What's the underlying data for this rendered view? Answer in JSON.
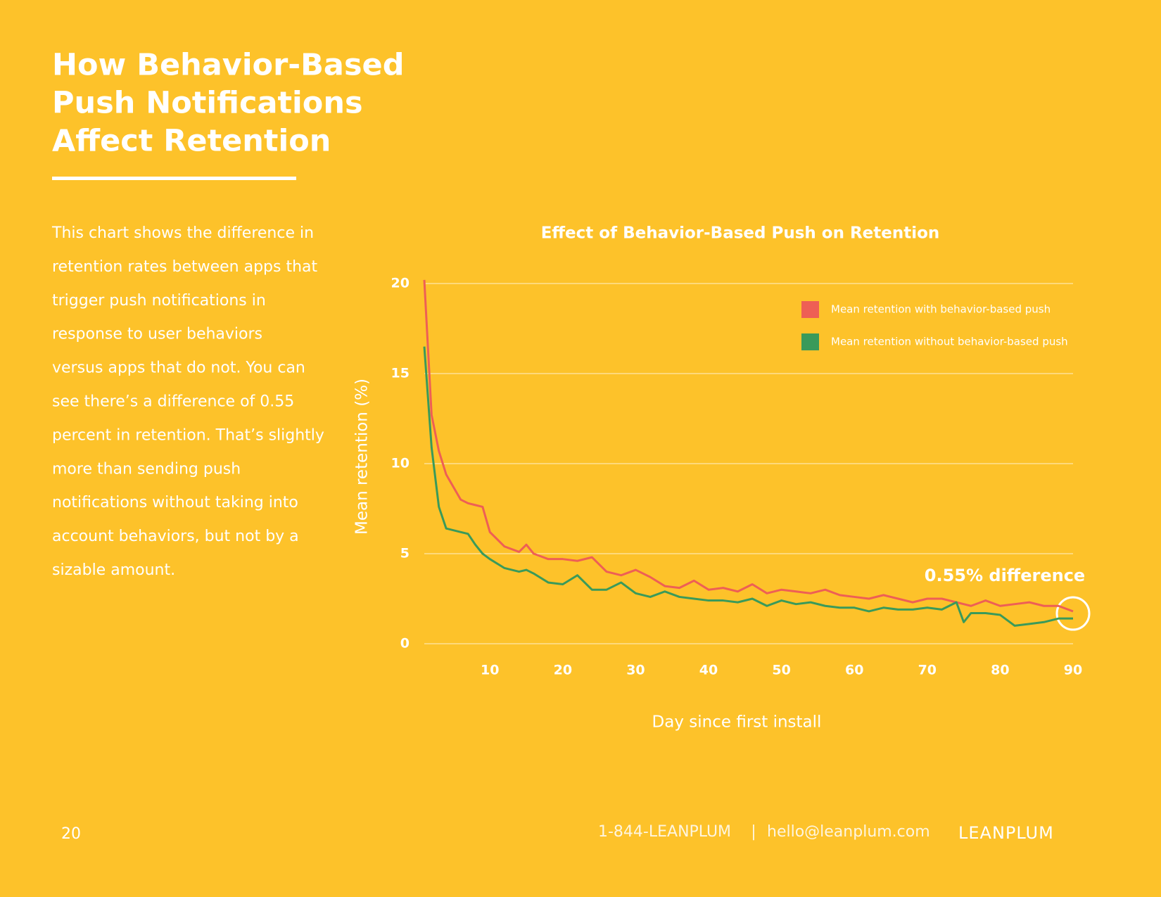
{
  "header": {
    "title_lines": [
      "How Behavior-Based",
      "Push Notifications",
      "Affect Retention"
    ]
  },
  "body": {
    "lines": [
      "This chart shows the difference in",
      "retention rates between apps that",
      "trigger push notifications in",
      "response to user behaviors",
      "versus apps that do not. You can",
      "see there’s a difference of 0.55",
      "percent in retention. That’s slightly",
      "more than sending push",
      "notifications without taking into",
      "account behaviors, but not by a",
      "sizable amount."
    ]
  },
  "chart_data": {
    "type": "line",
    "title": "Effect of Behavior-Based Push on Retention",
    "x_label": "Day since first install",
    "y_label": "Mean retention (%)",
    "annotation": "0.55% difference",
    "legend": "top-right",
    "grid": true,
    "xlim": [
      1,
      90
    ],
    "ylim": [
      0,
      20
    ],
    "xticks": [
      10,
      20,
      30,
      40,
      50,
      60,
      70,
      80,
      90
    ],
    "yticks": [
      0,
      5,
      10,
      15,
      20
    ],
    "x": [
      1,
      2,
      3,
      4,
      6,
      7,
      8,
      9,
      10,
      12,
      14,
      15,
      16,
      18,
      20,
      22,
      24,
      26,
      28,
      30,
      32,
      34,
      36,
      38,
      40,
      42,
      44,
      46,
      48,
      50,
      52,
      54,
      56,
      58,
      60,
      62,
      64,
      66,
      68,
      70,
      72,
      74,
      75,
      76,
      78,
      80,
      82,
      84,
      86,
      88,
      90
    ],
    "series": [
      {
        "name": "Mean retention with behavior-based push",
        "color": "#ee5f55",
        "values": [
          20.2,
          12.7,
          10.7,
          9.4,
          8.0,
          7.8,
          7.7,
          7.6,
          6.2,
          5.4,
          5.1,
          5.5,
          5.0,
          4.7,
          4.7,
          4.6,
          4.8,
          4.0,
          3.8,
          4.1,
          3.7,
          3.2,
          3.1,
          3.5,
          3.0,
          3.1,
          2.9,
          3.3,
          2.8,
          3.0,
          2.9,
          2.8,
          3.0,
          2.7,
          2.6,
          2.5,
          2.7,
          2.5,
          2.3,
          2.5,
          2.5,
          2.3,
          2.2,
          2.1,
          2.4,
          2.1,
          2.2,
          2.3,
          2.1,
          2.1,
          1.8
        ]
      },
      {
        "name": "Mean retention without behavior-based push",
        "color": "#3a9a5a",
        "values": [
          16.5,
          10.9,
          7.6,
          6.4,
          6.2,
          6.1,
          5.5,
          5.0,
          4.7,
          4.2,
          4.0,
          4.1,
          3.9,
          3.4,
          3.3,
          3.8,
          3.0,
          3.0,
          3.4,
          2.8,
          2.6,
          2.9,
          2.6,
          2.5,
          2.4,
          2.4,
          2.3,
          2.5,
          2.1,
          2.4,
          2.2,
          2.3,
          2.1,
          2.0,
          2.0,
          1.8,
          2.0,
          1.9,
          1.9,
          2.0,
          1.9,
          2.3,
          1.2,
          1.7,
          1.7,
          1.6,
          1.0,
          1.1,
          1.2,
          1.4,
          1.4
        ]
      }
    ]
  },
  "footer": {
    "page": "20",
    "phone": "1-844-LEANPLUM",
    "separator": "|",
    "email": "hello@leanplum.com",
    "logo": "LEANPLUM"
  }
}
